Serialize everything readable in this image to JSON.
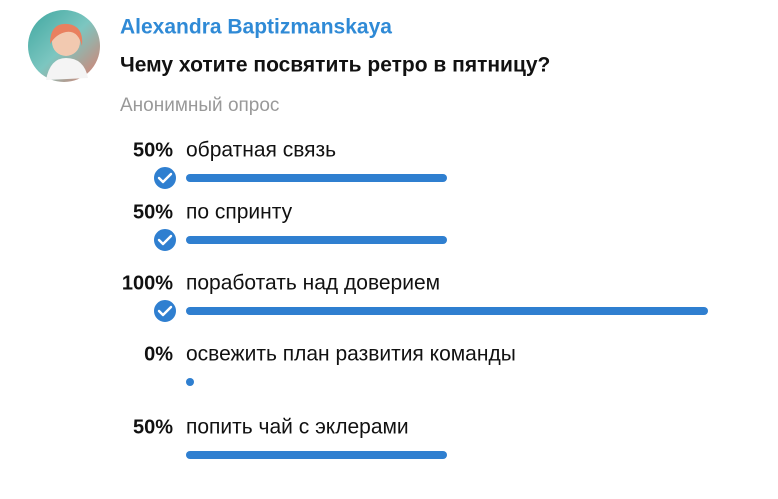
{
  "poll": {
    "author": "Alexandra Baptizmanskaya",
    "question": "Чему хотите посвятить ретро в пятницу?",
    "poll_type": "Анонимный опрос",
    "options": [
      {
        "text": "обратная связь",
        "percent": 50,
        "percent_label": "50%",
        "checked": true
      },
      {
        "text": "по спринту",
        "percent": 50,
        "percent_label": "50%",
        "checked": true
      },
      {
        "text": "поработать над доверием",
        "percent": 100,
        "percent_label": "100%",
        "checked": true
      },
      {
        "text": "освежить план развития команды",
        "percent": 0,
        "percent_label": "0%",
        "checked": false
      },
      {
        "text": "попить чай с эклерами",
        "percent": 50,
        "percent_label": "50%",
        "checked": false
      }
    ]
  }
}
